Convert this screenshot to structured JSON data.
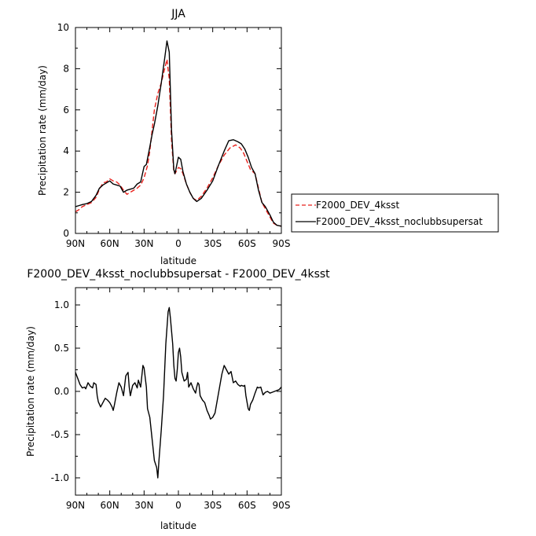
{
  "chart_data": [
    {
      "type": "line",
      "title": "JJA",
      "xlabel": "latitude",
      "ylabel": "Precipitation rate (mm/day)",
      "xlim": [
        90,
        -90
      ],
      "ylim": [
        0,
        10
      ],
      "x_ticks": [
        90,
        60,
        30,
        0,
        -30,
        -60,
        -90
      ],
      "x_tick_labels": [
        "90N",
        "60N",
        "30N",
        "0",
        "30S",
        "60S",
        "90S"
      ],
      "y_ticks": [
        0,
        2,
        4,
        6,
        8,
        10
      ],
      "y_tick_labels": [
        "0",
        "2",
        "4",
        "6",
        "8",
        "10"
      ],
      "grid": false,
      "legend_position": "right",
      "series": [
        {
          "name": "F2000_DEV_4ksst",
          "color": "#e8211c",
          "dash": "dashed",
          "points": [
            [
              90,
              1.05
            ],
            [
              87,
              1.15
            ],
            [
              84,
              1.3
            ],
            [
              80,
              1.4
            ],
            [
              76,
              1.5
            ],
            [
              72,
              1.75
            ],
            [
              69,
              2.15
            ],
            [
              66,
              2.45
            ],
            [
              63,
              2.5
            ],
            [
              60,
              2.65
            ],
            [
              57,
              2.55
            ],
            [
              54,
              2.5
            ],
            [
              51,
              2.35
            ],
            [
              48,
              2.1
            ],
            [
              45,
              1.9
            ],
            [
              42,
              2.0
            ],
            [
              39,
              2.1
            ],
            [
              36,
              2.2
            ],
            [
              33,
              2.35
            ],
            [
              30,
              2.7
            ],
            [
              27,
              3.3
            ],
            [
              25,
              4.0
            ],
            [
              23,
              5.0
            ],
            [
              21,
              6.0
            ],
            [
              18,
              6.8
            ],
            [
              15,
              7.3
            ],
            [
              12,
              8.0
            ],
            [
              10,
              8.45
            ],
            [
              8,
              7.5
            ],
            [
              6,
              4.5
            ],
            [
              4,
              3.0
            ],
            [
              3,
              2.9
            ],
            [
              0,
              3.2
            ],
            [
              -2,
              3.15
            ],
            [
              -4,
              2.9
            ],
            [
              -7,
              2.4
            ],
            [
              -10,
              2.0
            ],
            [
              -13,
              1.7
            ],
            [
              -16,
              1.6
            ],
            [
              -20,
              1.8
            ],
            [
              -25,
              2.2
            ],
            [
              -30,
              2.7
            ],
            [
              -35,
              3.3
            ],
            [
              -40,
              3.8
            ],
            [
              -45,
              4.15
            ],
            [
              -50,
              4.3
            ],
            [
              -54,
              4.15
            ],
            [
              -57,
              3.9
            ],
            [
              -60,
              3.5
            ],
            [
              -63,
              3.1
            ],
            [
              -67,
              2.9
            ],
            [
              -70,
              2.2
            ],
            [
              -73,
              1.5
            ],
            [
              -76,
              1.2
            ],
            [
              -80,
              0.8
            ],
            [
              -83,
              0.5
            ],
            [
              -86,
              0.4
            ],
            [
              -90,
              0.35
            ]
          ]
        },
        {
          "name": "F2000_DEV_4ksst_noclubbsupersat",
          "color": "#000000",
          "dash": "solid",
          "points": [
            [
              90,
              1.3
            ],
            [
              87,
              1.35
            ],
            [
              84,
              1.4
            ],
            [
              80,
              1.45
            ],
            [
              76,
              1.55
            ],
            [
              72,
              1.85
            ],
            [
              69,
              2.2
            ],
            [
              66,
              2.35
            ],
            [
              63,
              2.45
            ],
            [
              60,
              2.55
            ],
            [
              57,
              2.4
            ],
            [
              54,
              2.35
            ],
            [
              51,
              2.3
            ],
            [
              48,
              2.0
            ],
            [
              45,
              2.1
            ],
            [
              42,
              2.15
            ],
            [
              39,
              2.2
            ],
            [
              36,
              2.4
            ],
            [
              33,
              2.5
            ],
            [
              30,
              3.25
            ],
            [
              28,
              3.35
            ],
            [
              25,
              4.2
            ],
            [
              23,
              4.8
            ],
            [
              21,
              5.3
            ],
            [
              18,
              6.2
            ],
            [
              15,
              7.3
            ],
            [
              12,
              8.5
            ],
            [
              10,
              9.35
            ],
            [
              8,
              8.8
            ],
            [
              6,
              5.0
            ],
            [
              4,
              3.1
            ],
            [
              3,
              2.9
            ],
            [
              0,
              3.7
            ],
            [
              -2,
              3.6
            ],
            [
              -4,
              3.0
            ],
            [
              -7,
              2.4
            ],
            [
              -10,
              2.0
            ],
            [
              -13,
              1.7
            ],
            [
              -16,
              1.55
            ],
            [
              -20,
              1.7
            ],
            [
              -25,
              2.1
            ],
            [
              -30,
              2.55
            ],
            [
              -35,
              3.3
            ],
            [
              -40,
              4.0
            ],
            [
              -44,
              4.5
            ],
            [
              -48,
              4.55
            ],
            [
              -52,
              4.45
            ],
            [
              -55,
              4.35
            ],
            [
              -58,
              4.1
            ],
            [
              -61,
              3.7
            ],
            [
              -64,
              3.2
            ],
            [
              -67,
              2.9
            ],
            [
              -70,
              2.1
            ],
            [
              -73,
              1.5
            ],
            [
              -76,
              1.3
            ],
            [
              -80,
              0.9
            ],
            [
              -83,
              0.55
            ],
            [
              -86,
              0.4
            ],
            [
              -90,
              0.35
            ]
          ]
        }
      ]
    },
    {
      "type": "line",
      "title": "F2000_DEV_4ksst_noclubbsupersat - F2000_DEV_4ksst",
      "xlabel": "latitude",
      "ylabel": "Precipitation rate (mm/day)",
      "xlim": [
        90,
        -90
      ],
      "ylim": [
        -1.2,
        1.2
      ],
      "x_ticks": [
        90,
        60,
        30,
        0,
        -30,
        -60,
        -90
      ],
      "x_tick_labels": [
        "90N",
        "60N",
        "30N",
        "0",
        "30S",
        "60S",
        "90S"
      ],
      "y_ticks": [
        -1.0,
        -0.5,
        0.0,
        0.5,
        1.0
      ],
      "y_tick_labels": [
        "-1.0",
        "-0.5",
        "0.0",
        "0.5",
        "1.0"
      ],
      "grid": false,
      "series": [
        {
          "color": "#000000",
          "dash": "solid",
          "points": [
            [
              90,
              0.22
            ],
            [
              88,
              0.15
            ],
            [
              86,
              0.08
            ],
            [
              84,
              0.04
            ],
            [
              82,
              0.05
            ],
            [
              81,
              0.03
            ],
            [
              79,
              0.1
            ],
            [
              77,
              0.06
            ],
            [
              75,
              0.04
            ],
            [
              74,
              0.1
            ],
            [
              72,
              0.08
            ],
            [
              71,
              -0.05
            ],
            [
              70,
              -0.12
            ],
            [
              68,
              -0.18
            ],
            [
              66,
              -0.13
            ],
            [
              64,
              -0.08
            ],
            [
              62,
              -0.1
            ],
            [
              60,
              -0.13
            ],
            [
              58,
              -0.18
            ],
            [
              57,
              -0.22
            ],
            [
              56,
              -0.16
            ],
            [
              54,
              -0.02
            ],
            [
              52,
              0.1
            ],
            [
              50,
              0.05
            ],
            [
              48,
              -0.05
            ],
            [
              46,
              0.18
            ],
            [
              44,
              0.22
            ],
            [
              43,
              0.05
            ],
            [
              42,
              -0.05
            ],
            [
              40,
              0.07
            ],
            [
              38,
              0.1
            ],
            [
              36,
              0.04
            ],
            [
              35,
              0.13
            ],
            [
              33,
              0.05
            ],
            [
              31,
              0.3
            ],
            [
              30,
              0.27
            ],
            [
              28,
              0.05
            ],
            [
              27,
              -0.2
            ],
            [
              25,
              -0.3
            ],
            [
              23,
              -0.55
            ],
            [
              21,
              -0.8
            ],
            [
              19,
              -0.88
            ],
            [
              18,
              -1.0
            ],
            [
              17,
              -0.8
            ],
            [
              15,
              -0.45
            ],
            [
              13,
              -0.05
            ],
            [
              11,
              0.55
            ],
            [
              9,
              0.92
            ],
            [
              8,
              0.97
            ],
            [
              7,
              0.85
            ],
            [
              5,
              0.55
            ],
            [
              4,
              0.3
            ],
            [
              3,
              0.15
            ],
            [
              2,
              0.12
            ],
            [
              1,
              0.25
            ],
            [
              0,
              0.45
            ],
            [
              -1,
              0.5
            ],
            [
              -2,
              0.4
            ],
            [
              -3,
              0.22
            ],
            [
              -5,
              0.12
            ],
            [
              -7,
              0.14
            ],
            [
              -8,
              0.22
            ],
            [
              -9,
              0.05
            ],
            [
              -11,
              0.1
            ],
            [
              -13,
              0.03
            ],
            [
              -15,
              -0.02
            ],
            [
              -16,
              0.05
            ],
            [
              -17,
              0.1
            ],
            [
              -18,
              0.08
            ],
            [
              -19,
              -0.05
            ],
            [
              -21,
              -0.1
            ],
            [
              -23,
              -0.13
            ],
            [
              -25,
              -0.22
            ],
            [
              -27,
              -0.28
            ],
            [
              -28,
              -0.32
            ],
            [
              -30,
              -0.3
            ],
            [
              -32,
              -0.25
            ],
            [
              -34,
              -0.1
            ],
            [
              -36,
              0.05
            ],
            [
              -38,
              0.2
            ],
            [
              -40,
              0.3
            ],
            [
              -42,
              0.25
            ],
            [
              -44,
              0.2
            ],
            [
              -46,
              0.23
            ],
            [
              -48,
              0.1
            ],
            [
              -50,
              0.12
            ],
            [
              -52,
              0.08
            ],
            [
              -54,
              0.06
            ],
            [
              -55,
              0.07
            ],
            [
              -57,
              0.06
            ],
            [
              -58,
              0.07
            ],
            [
              -59,
              -0.05
            ],
            [
              -61,
              -0.2
            ],
            [
              -62,
              -0.22
            ],
            [
              -63,
              -0.15
            ],
            [
              -65,
              -0.1
            ],
            [
              -67,
              -0.02
            ],
            [
              -69,
              0.05
            ],
            [
              -70,
              0.04
            ],
            [
              -72,
              0.05
            ],
            [
              -74,
              -0.04
            ],
            [
              -76,
              -0.01
            ],
            [
              -78,
              0.0
            ],
            [
              -80,
              -0.02
            ],
            [
              -82,
              -0.01
            ],
            [
              -84,
              0.0
            ],
            [
              -86,
              0.01
            ],
            [
              -88,
              0.02
            ],
            [
              -90,
              0.05
            ]
          ]
        }
      ]
    }
  ]
}
